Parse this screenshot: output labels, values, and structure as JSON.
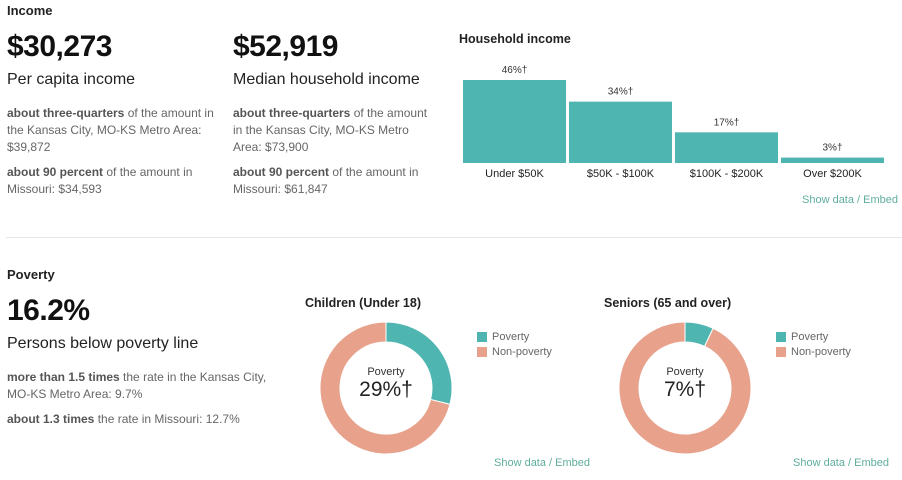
{
  "income": {
    "section_title": "Income",
    "per_capita": {
      "value": "$30,273",
      "label": "Per capita income",
      "note1_bold": "about three-quarters",
      "note1_rest": " of the amount in the Kansas City, MO-KS Metro Area: $39,872",
      "note2_bold": "about 90 percent",
      "note2_rest": " of the amount in Missouri: $34,593"
    },
    "median_household": {
      "value": "$52,919",
      "label": "Median household income",
      "note1_bold": "about three-quarters",
      "note1_rest": " of the amount in the Kansas City, MO-KS Metro Area: $73,900",
      "note2_bold": "about 90 percent",
      "note2_rest": " of the amount in Missouri: $61,847"
    },
    "household_chart_title": "Household income",
    "show_data_label": "Show data / Embed"
  },
  "poverty": {
    "section_title": "Poverty",
    "value": "16.2%",
    "label": "Persons below poverty line",
    "note1_bold": "more than 1.5 times",
    "note1_rest": " the rate in the Kansas City, MO-KS Metro Area: 9.7%",
    "note2_bold": "about 1.3 times",
    "note2_rest": " the rate in Missouri: 12.7%",
    "children_title": "Children (Under 18)",
    "children_center_label": "Poverty",
    "children_center_value": "29%†",
    "seniors_title": "Seniors (65 and over)",
    "seniors_center_label": "Poverty",
    "seniors_center_value": "7%†",
    "show_data_label": "Show data / Embed"
  },
  "colors": {
    "teal": "#4fb5b1",
    "salmon": "#e8a18b",
    "link": "#5fae9d"
  },
  "chart_data": [
    {
      "type": "bar",
      "title": "Household income",
      "categories": [
        "Under $50K",
        "$50K - $100K",
        "$100K - $200K",
        "Over $200K"
      ],
      "values": [
        46,
        34,
        17,
        3
      ],
      "value_labels": [
        "46%†",
        "34%†",
        "17%†",
        "3%†"
      ],
      "ylim": [
        0,
        46
      ],
      "xlabel": "",
      "ylabel": ""
    },
    {
      "type": "pie",
      "title": "Children (Under 18)",
      "categories": [
        "Poverty",
        "Non-poverty"
      ],
      "values": [
        29,
        71
      ]
    },
    {
      "type": "pie",
      "title": "Seniors (65 and over)",
      "categories": [
        "Poverty",
        "Non-poverty"
      ],
      "values": [
        7,
        93
      ]
    }
  ]
}
